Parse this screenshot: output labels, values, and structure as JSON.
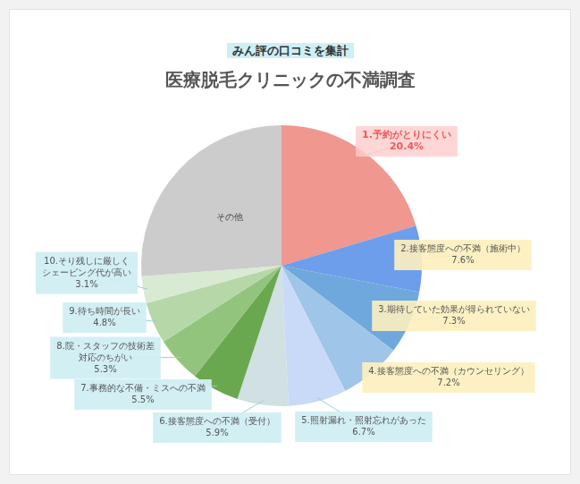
{
  "chart_data": {
    "type": "pie",
    "title": "医療脱毛クリニックの不満調査",
    "subtitle": "みん評の口コミを集計",
    "categories": [
      "1.予約がとりにくい",
      "2.接客態度への不満（施術中）",
      "3.期待していた効果が得られていない",
      "4.接客態度への不満（カウンセリング）",
      "5.照射漏れ・照射忘れがあった",
      "6.接客態度への不満（受付）",
      "7.事務的な不備・ミスへの不満",
      "8.院・スタッフの技術差\n対応のちがい",
      "9.待ち時間が長い",
      "10.そり残しに厳しく\nシェービング代が高い",
      "その他"
    ],
    "values": [
      20.4,
      7.6,
      7.3,
      7.2,
      6.7,
      5.9,
      5.5,
      5.3,
      4.8,
      3.1,
      26.2
    ],
    "value_labels": [
      "20.4%",
      "7.6%",
      "7.3%",
      "7.2%",
      "6.7%",
      "5.9%",
      "5.5%",
      "5.3%",
      "4.8%",
      "3.1%",
      null
    ],
    "colors": [
      "#f0978f",
      "#6d9eeb",
      "#6fa8dc",
      "#9fc5e8",
      "#c9daf8",
      "#d0e0e3",
      "#6aa84f",
      "#93c47d",
      "#b6d7a8",
      "#d9ead3",
      "#cccccc"
    ],
    "data_labels": true
  }
}
